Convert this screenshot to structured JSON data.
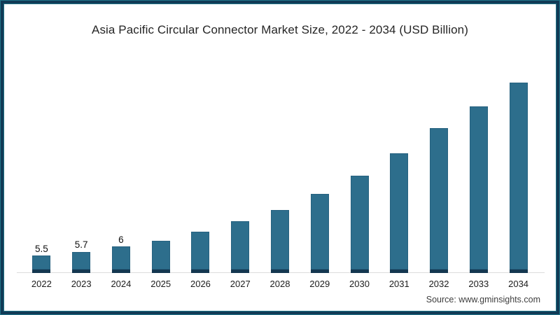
{
  "frame": {
    "border_color": "#113a56",
    "accent_color": "#217488"
  },
  "chart_data": {
    "type": "bar",
    "title": "Asia Pacific Circular Connector Market Size, 2022 - 2034 (USD Billion)",
    "categories": [
      "2022",
      "2023",
      "2024",
      "2025",
      "2026",
      "2027",
      "2028",
      "2029",
      "2030",
      "2031",
      "2032",
      "2033",
      "2034"
    ],
    "values": [
      5.5,
      5.7,
      6.0,
      6.3,
      6.8,
      7.4,
      8.0,
      8.9,
      9.9,
      11.1,
      12.5,
      13.7,
      15.0
    ],
    "data_labels": [
      "5.5",
      "5.7",
      "6",
      "",
      "",
      "",
      "",
      "",
      "",
      "",
      "",
      "",
      ""
    ],
    "xlabel": "",
    "ylabel": "",
    "ylim": [
      4.54,
      15.0
    ],
    "grid": false,
    "legend_position": "none",
    "bar_color": "#2d6e8c",
    "bar_cap_color": "#143750",
    "axis_line_color": "#dcdcdc"
  },
  "source": {
    "label": "Source: www.gminsights.com"
  }
}
